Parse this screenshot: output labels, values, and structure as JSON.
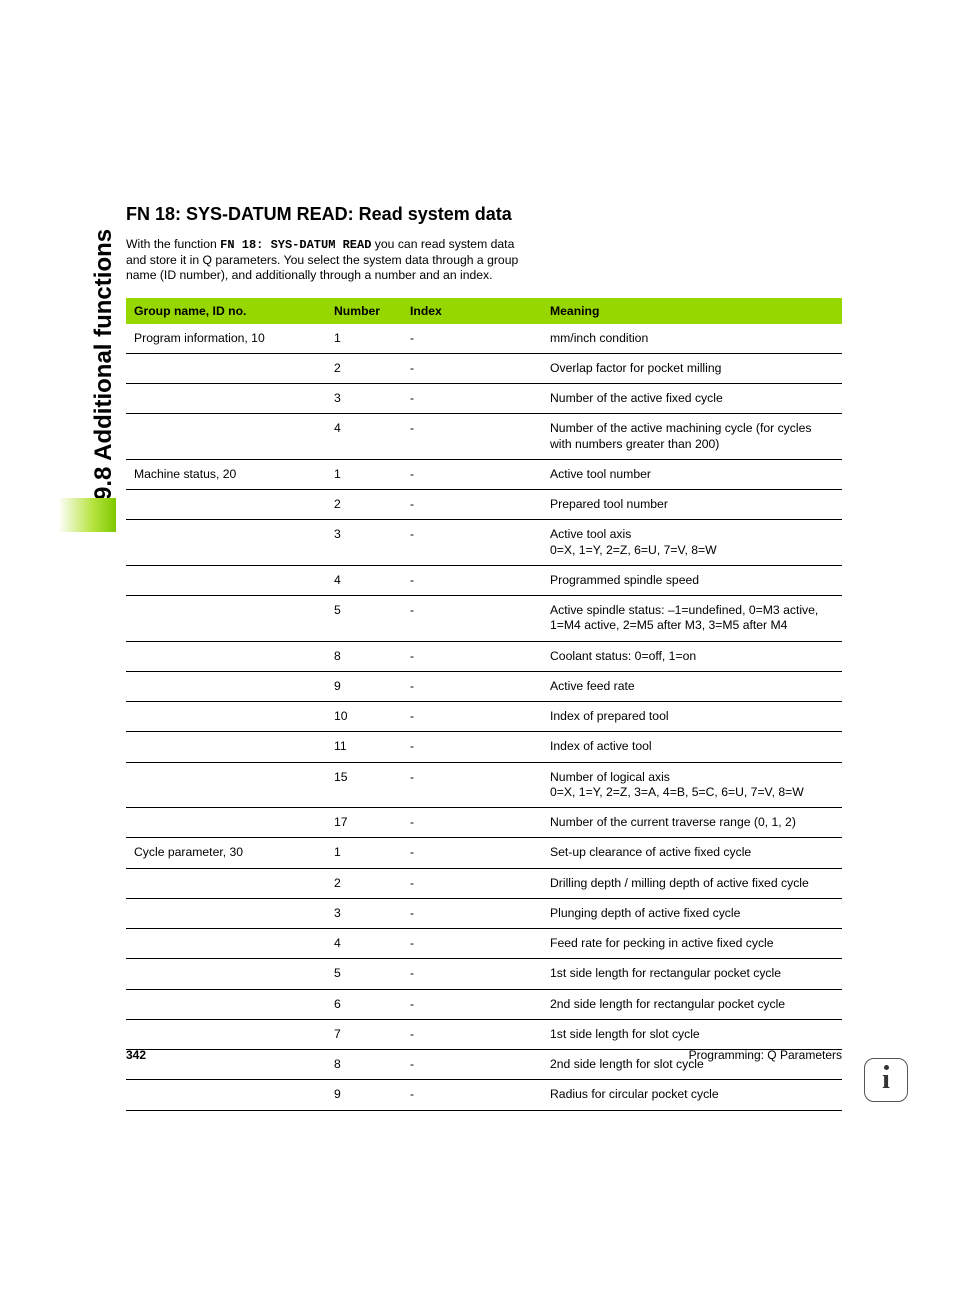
{
  "side_label": "9.8 Additional functions",
  "title": "FN 18: SYS-DATUM READ: Read system data",
  "intro_prefix": "With the function ",
  "intro_mono": "FN 18: SYS-DATUM READ",
  "intro_suffix": " you can read system data and store it in Q parameters. You select the system data through a group name (ID number), and additionally through a number and an index.",
  "columns": {
    "group": "Group name, ID no.",
    "number": "Number",
    "index": "Index",
    "meaning": "Meaning"
  },
  "rows": [
    {
      "group": "Program information, 10",
      "number": "1",
      "index": "-",
      "meaning": "mm/inch condition"
    },
    {
      "group": "",
      "number": "2",
      "index": "-",
      "meaning": "Overlap factor for pocket milling"
    },
    {
      "group": "",
      "number": "3",
      "index": "-",
      "meaning": "Number of the active fixed cycle"
    },
    {
      "group": "",
      "number": "4",
      "index": "-",
      "meaning": "Number of the active machining cycle (for cycles with numbers greater than 200)"
    },
    {
      "group": "Machine status, 20",
      "number": "1",
      "index": "-",
      "meaning": "Active tool number"
    },
    {
      "group": "",
      "number": "2",
      "index": "-",
      "meaning": "Prepared tool number"
    },
    {
      "group": "",
      "number": "3",
      "index": "-",
      "meaning": "Active tool axis\n0=X, 1=Y, 2=Z, 6=U, 7=V, 8=W"
    },
    {
      "group": "",
      "number": "4",
      "index": "-",
      "meaning": "Programmed spindle speed"
    },
    {
      "group": "",
      "number": "5",
      "index": "-",
      "meaning": "Active spindle status: –1=undefined, 0=M3 active, 1=M4 active, 2=M5 after M3, 3=M5 after M4"
    },
    {
      "group": "",
      "number": "8",
      "index": "-",
      "meaning": "Coolant status: 0=off, 1=on"
    },
    {
      "group": "",
      "number": "9",
      "index": "-",
      "meaning": "Active feed rate"
    },
    {
      "group": "",
      "number": "10",
      "index": "-",
      "meaning": "Index of prepared tool"
    },
    {
      "group": "",
      "number": "11",
      "index": "-",
      "meaning": "Index of active tool"
    },
    {
      "group": "",
      "number": "15",
      "index": "-",
      "meaning": "Number of logical axis\n0=X, 1=Y, 2=Z, 3=A, 4=B, 5=C, 6=U, 7=V, 8=W"
    },
    {
      "group": "",
      "number": "17",
      "index": "-",
      "meaning": "Number of the current traverse range (0, 1, 2)"
    },
    {
      "group": "Cycle parameter, 30",
      "number": "1",
      "index": "-",
      "meaning": "Set-up clearance of active fixed cycle"
    },
    {
      "group": "",
      "number": "2",
      "index": "-",
      "meaning": "Drilling depth / milling depth of active fixed cycle"
    },
    {
      "group": "",
      "number": "3",
      "index": "-",
      "meaning": "Plunging depth of active fixed cycle"
    },
    {
      "group": "",
      "number": "4",
      "index": "-",
      "meaning": "Feed rate for pecking in active fixed cycle"
    },
    {
      "group": "",
      "number": "5",
      "index": "-",
      "meaning": "1st side length for rectangular pocket cycle"
    },
    {
      "group": "",
      "number": "6",
      "index": "-",
      "meaning": "2nd side length for rectangular pocket cycle"
    },
    {
      "group": "",
      "number": "7",
      "index": "-",
      "meaning": "1st side length for slot cycle"
    },
    {
      "group": "",
      "number": "8",
      "index": "-",
      "meaning": "2nd side length for slot cycle"
    },
    {
      "group": "",
      "number": "9",
      "index": "-",
      "meaning": "Radius for circular pocket cycle"
    }
  ],
  "footer": {
    "page": "342",
    "chapter": "Programming: Q Parameters"
  },
  "colors": {
    "header_bg": "#97d700",
    "border": "#000000",
    "side_gradient_from": "#ffffff",
    "side_gradient_to": "#7ec800"
  }
}
